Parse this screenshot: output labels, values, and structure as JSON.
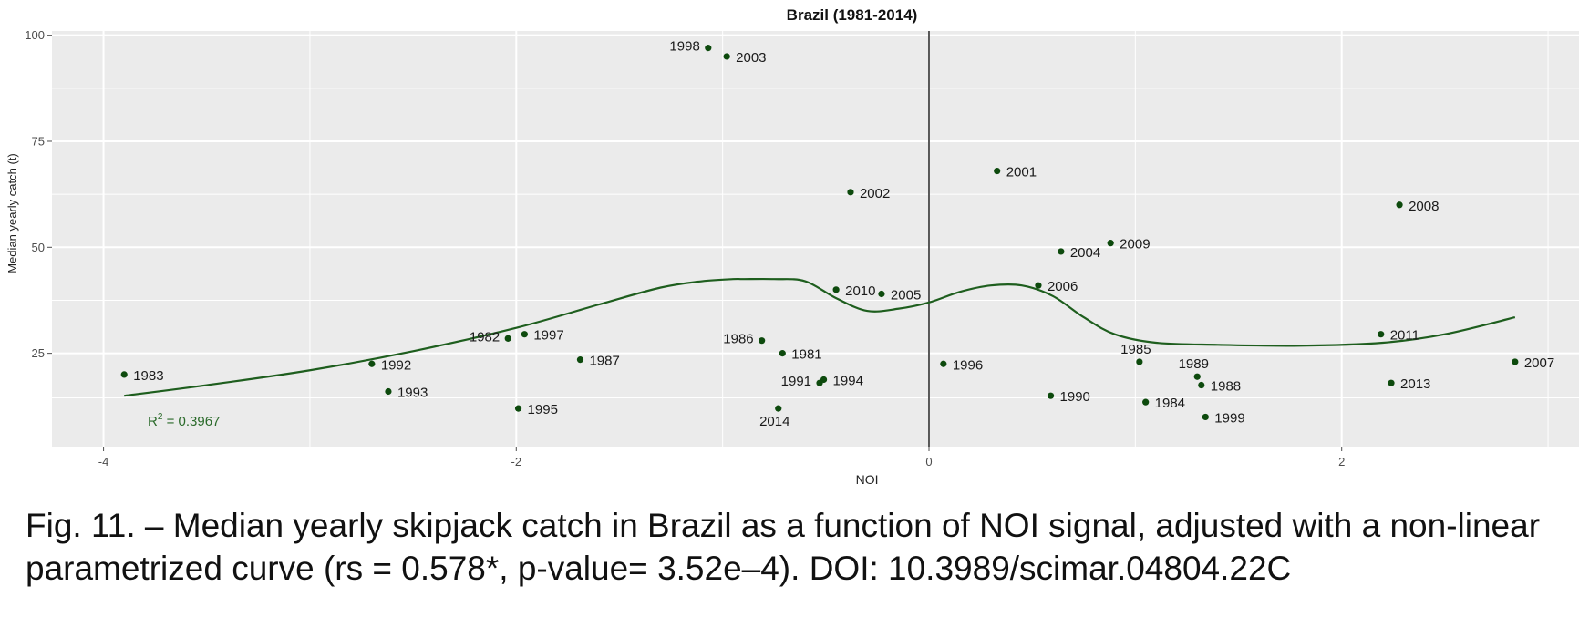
{
  "chart_data": {
    "type": "scatter",
    "title": "Brazil (1981-2014)",
    "xlabel": "NOI",
    "ylabel": "Median yearly catch (t)",
    "xlim": [
      -4.25,
      3.15
    ],
    "ylim": [
      3,
      101
    ],
    "xticks": [
      -4,
      -2,
      0,
      2
    ],
    "yticks": [
      25,
      50,
      75,
      100
    ],
    "grid": true,
    "vertical_reference_line": 0,
    "annotation": {
      "r2_label": "R",
      "r2_sup": "2",
      "r2_value": " = 0.3967"
    },
    "points": [
      {
        "label": "1983",
        "x": -3.9,
        "y": 20,
        "lp": "r"
      },
      {
        "label": "1992",
        "x": -2.7,
        "y": 22.5,
        "lp": "r"
      },
      {
        "label": "1993",
        "x": -2.62,
        "y": 16,
        "lp": "r"
      },
      {
        "label": "1982",
        "x": -2.04,
        "y": 28.5,
        "lp": "l"
      },
      {
        "label": "1997",
        "x": -1.96,
        "y": 29.5,
        "lp": "r"
      },
      {
        "label": "1995",
        "x": -1.99,
        "y": 12,
        "lp": "r"
      },
      {
        "label": "1987",
        "x": -1.69,
        "y": 23.5,
        "lp": "r"
      },
      {
        "label": "1998",
        "x": -1.07,
        "y": 97,
        "lp": "l"
      },
      {
        "label": "2003",
        "x": -0.98,
        "y": 95,
        "lp": "r"
      },
      {
        "label": "1986",
        "x": -0.81,
        "y": 28,
        "lp": "l"
      },
      {
        "label": "1981",
        "x": -0.71,
        "y": 25,
        "lp": "r"
      },
      {
        "label": "1994",
        "x": -0.51,
        "y": 18.8,
        "lp": "r"
      },
      {
        "label": "1991",
        "x": -0.53,
        "y": 18,
        "lp": "l"
      },
      {
        "label": "2014",
        "x": -0.73,
        "y": 12,
        "lp": "b"
      },
      {
        "label": "2010",
        "x": -0.45,
        "y": 40,
        "lp": "r"
      },
      {
        "label": "2002",
        "x": -0.38,
        "y": 63,
        "lp": "r"
      },
      {
        "label": "2005",
        "x": -0.23,
        "y": 39,
        "lp": "r"
      },
      {
        "label": "1996",
        "x": 0.07,
        "y": 22.5,
        "lp": "r"
      },
      {
        "label": "2001",
        "x": 0.33,
        "y": 68,
        "lp": "r"
      },
      {
        "label": "2006",
        "x": 0.53,
        "y": 41,
        "lp": "r"
      },
      {
        "label": "2004",
        "x": 0.64,
        "y": 49,
        "lp": "r"
      },
      {
        "label": "1990",
        "x": 0.59,
        "y": 15,
        "lp": "r"
      },
      {
        "label": "2009",
        "x": 0.88,
        "y": 51,
        "lp": "r"
      },
      {
        "label": "1985",
        "x": 1.02,
        "y": 23,
        "lp": "t"
      },
      {
        "label": "1984",
        "x": 1.05,
        "y": 13.5,
        "lp": "r"
      },
      {
        "label": "1989",
        "x": 1.3,
        "y": 19.5,
        "lp": "t"
      },
      {
        "label": "1988",
        "x": 1.32,
        "y": 17.5,
        "lp": "r"
      },
      {
        "label": "1999",
        "x": 1.34,
        "y": 10,
        "lp": "r"
      },
      {
        "label": "2011",
        "x": 2.19,
        "y": 29.5,
        "lp": "r"
      },
      {
        "label": "2008",
        "x": 2.28,
        "y": 60,
        "lp": "r"
      },
      {
        "label": "2013",
        "x": 2.24,
        "y": 18,
        "lp": "r"
      },
      {
        "label": "2007",
        "x": 2.84,
        "y": 23,
        "lp": "r"
      }
    ],
    "fit_curve": {
      "x": [
        -3.9,
        -3.5,
        -3.0,
        -2.5,
        -2.0,
        -1.6,
        -1.3,
        -1.1,
        -0.95,
        -0.9,
        -0.75,
        -0.6,
        -0.45,
        -0.3,
        -0.15,
        0.0,
        0.15,
        0.3,
        0.45,
        0.6,
        0.75,
        0.9,
        1.1,
        1.4,
        1.8,
        2.2,
        2.5,
        2.84
      ],
      "y": [
        15,
        17.5,
        21,
        25.5,
        31,
        36.5,
        40.5,
        42,
        42.5,
        42.5,
        42.5,
        42,
        38,
        35,
        35.5,
        37,
        39.5,
        41,
        41,
        38.5,
        33.5,
        29.5,
        27.5,
        27,
        26.8,
        27.5,
        29.5,
        33.5
      ]
    }
  },
  "caption": "Fig. 11. – Median yearly skipjack catch in Brazil as a function of NOI signal, adjusted with a non-linear parametrized curve (rs = 0.578*, p-value= 3.52e–4). DOI: 10.3989/scimar.04804.22C",
  "colors": {
    "panel": "#ebebeb",
    "grid": "#ffffff",
    "point": "#0d4a0d",
    "curve": "#1e5e1e",
    "annotation": "#2a6a2a",
    "text": "#1a1a1a",
    "tick": "#4d4d4d"
  }
}
